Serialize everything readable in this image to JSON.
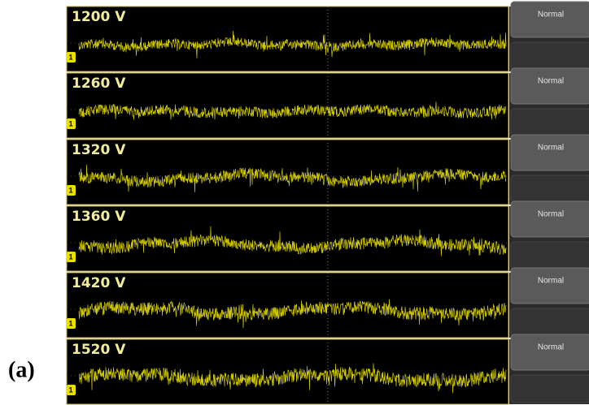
{
  "figure_label": "(a)",
  "panels": [
    {
      "label": "1200 V",
      "channel": "1",
      "button": "Normal"
    },
    {
      "label": "1260 V",
      "channel": "1",
      "button": "Normal"
    },
    {
      "label": "1320 V",
      "channel": "1",
      "button": "Normal"
    },
    {
      "label": "1360 V",
      "channel": "1",
      "button": "Normal"
    },
    {
      "label": "1420 V",
      "channel": "1",
      "button": "Normal"
    },
    {
      "label": "1520 V",
      "channel": "1",
      "button": "Normal"
    }
  ]
}
